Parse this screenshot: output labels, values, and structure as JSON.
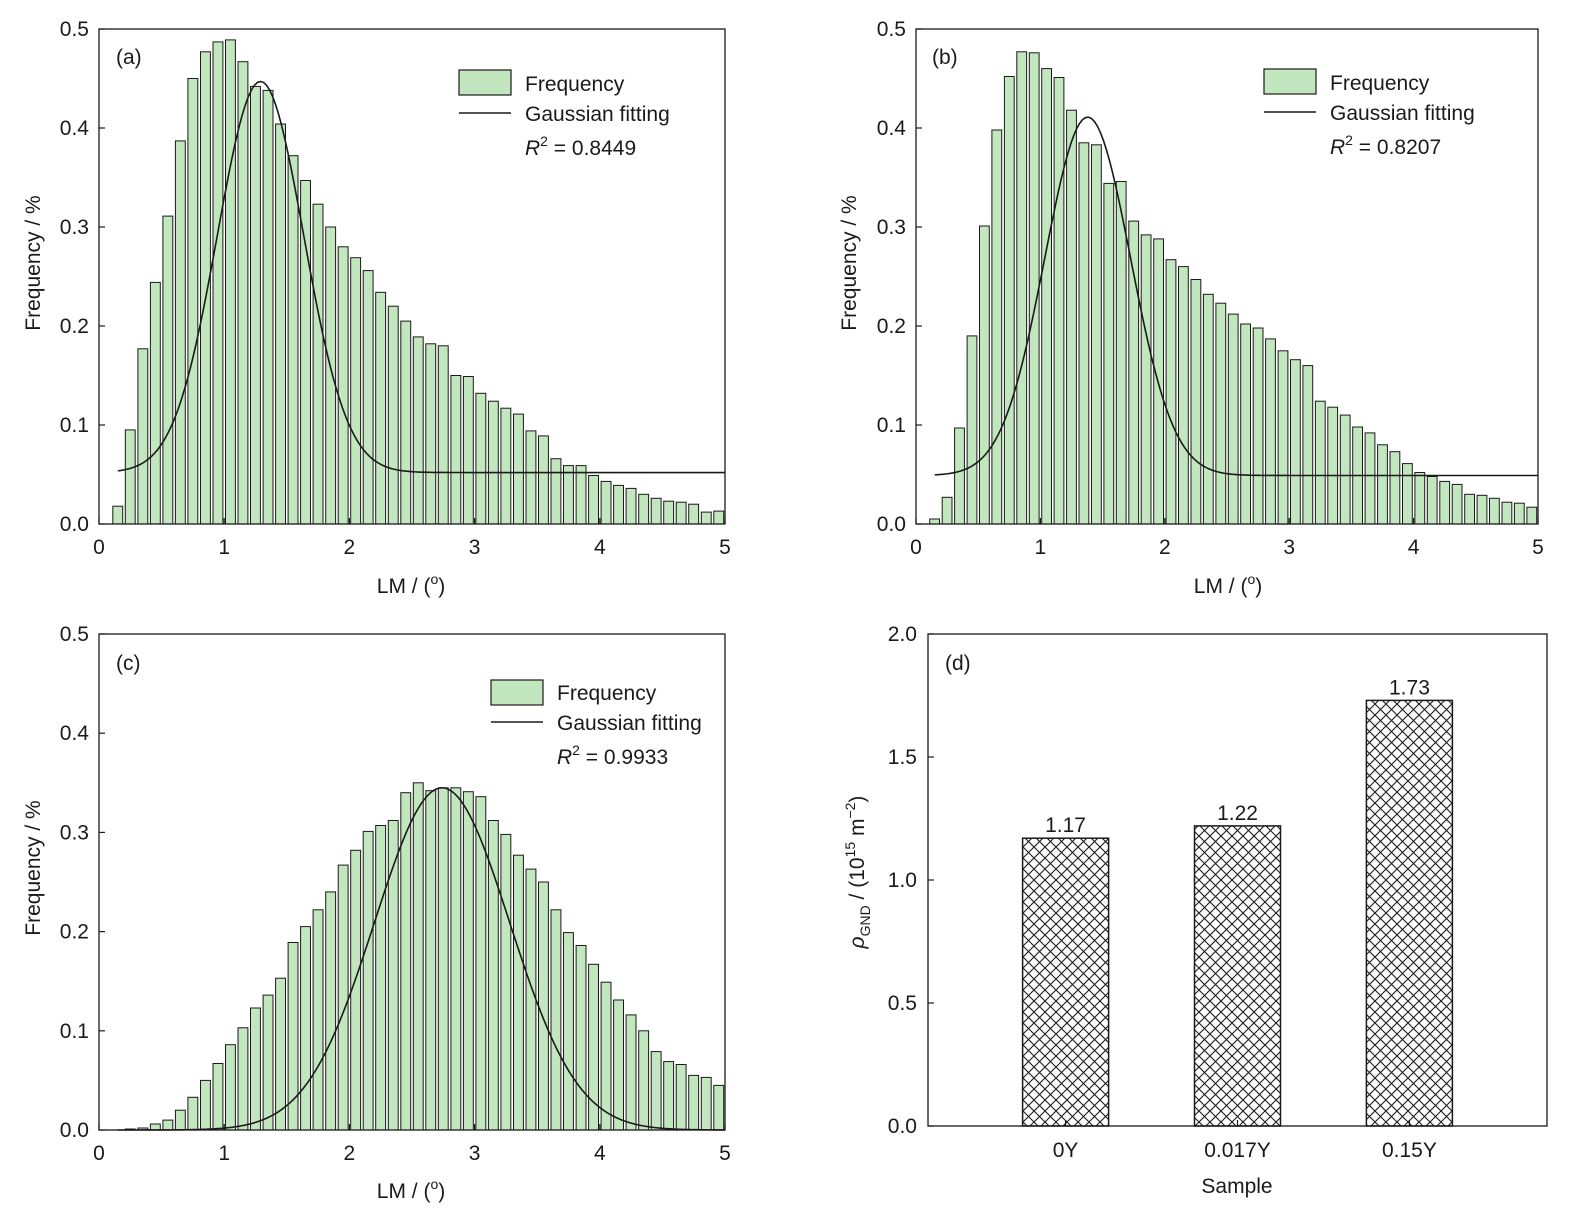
{
  "figure": {
    "panels": [
      {
        "tag": "(a)",
        "ylabel": "Frequency / %",
        "xlabel": "LM / (",
        "xlabel_deg": "o",
        "xlabel_close": ")",
        "legend": {
          "bar": "Frequency",
          "line": "Gaussian fitting",
          "r2_value": "0.8449"
        }
      },
      {
        "tag": "(b)",
        "ylabel": "Frequency / %",
        "xlabel": "LM / (",
        "xlabel_deg": "o",
        "xlabel_close": ")",
        "legend": {
          "bar": "Frequency",
          "line": "Gaussian fitting",
          "r2_value": "0.8207"
        }
      },
      {
        "tag": "(c)",
        "ylabel": "Frequency / %",
        "xlabel": "LM / (",
        "xlabel_deg": "o",
        "xlabel_close": ")",
        "legend": {
          "bar": "Frequency",
          "line": "Gaussian fitting",
          "r2_value": "0.9933"
        }
      },
      {
        "tag": "(d)",
        "xlabel": "Sample",
        "ylabel_rho": "ρ",
        "ylabel_sub": "GND",
        "ylabel_unit": " / (10",
        "ylabel_exp": "15",
        "ylabel_m": " m",
        "ylabel_mexp": "−2",
        "ylabel_close": ")"
      }
    ],
    "r2_symbol": "R",
    "r2_exp": "2",
    "colors": {
      "bar_fill": "#c2e6bd",
      "bar_stroke": "#1a1a1a",
      "line": "#1a1a1a"
    }
  },
  "chart_data": [
    {
      "type": "bar",
      "subtype": "histogram_with_fit",
      "title": "(a)",
      "xlabel": "LM / (o)",
      "ylabel": "Frequency / %",
      "xlim": [
        0,
        5
      ],
      "ylim": [
        0,
        0.5
      ],
      "xticks": [
        0,
        1,
        2,
        3,
        4,
        5
      ],
      "yticks": [
        0.0,
        0.1,
        0.2,
        0.3,
        0.4,
        0.5
      ],
      "bin_width": 0.1,
      "x": [
        0.15,
        0.25,
        0.35,
        0.45,
        0.55,
        0.65,
        0.75,
        0.85,
        0.95,
        1.05,
        1.15,
        1.25,
        1.35,
        1.45,
        1.55,
        1.65,
        1.75,
        1.85,
        1.95,
        2.05,
        2.15,
        2.25,
        2.35,
        2.45,
        2.55,
        2.65,
        2.75,
        2.85,
        2.95,
        3.05,
        3.15,
        3.25,
        3.35,
        3.45,
        3.55,
        3.65,
        3.75,
        3.85,
        3.95,
        4.05,
        4.15,
        4.25,
        4.35,
        4.45,
        4.55,
        4.65,
        4.75,
        4.85,
        4.95
      ],
      "series": [
        {
          "name": "Frequency",
          "values": [
            0.018,
            0.095,
            0.177,
            0.244,
            0.311,
            0.387,
            0.45,
            0.477,
            0.487,
            0.489,
            0.467,
            0.442,
            0.438,
            0.404,
            0.372,
            0.347,
            0.323,
            0.3,
            0.28,
            0.269,
            0.256,
            0.234,
            0.22,
            0.205,
            0.189,
            0.182,
            0.18,
            0.15,
            0.149,
            0.132,
            0.124,
            0.117,
            0.111,
            0.094,
            0.089,
            0.066,
            0.059,
            0.059,
            0.049,
            0.043,
            0.039,
            0.036,
            0.03,
            0.026,
            0.023,
            0.022,
            0.02,
            0.012,
            0.013
          ]
        },
        {
          "name": "Gaussian fitting",
          "fit": {
            "y0": 0.052,
            "xc": 1.29,
            "w": 0.69,
            "A": 0.395,
            "x_start": 0.15,
            "x_end": 5.0
          }
        }
      ],
      "annotation": "R2 = 0.8449"
    },
    {
      "type": "bar",
      "subtype": "histogram_with_fit",
      "title": "(b)",
      "xlabel": "LM / (o)",
      "ylabel": "Frequency / %",
      "xlim": [
        0,
        5
      ],
      "ylim": [
        0,
        0.5
      ],
      "xticks": [
        0,
        1,
        2,
        3,
        4,
        5
      ],
      "yticks": [
        0.0,
        0.1,
        0.2,
        0.3,
        0.4,
        0.5
      ],
      "bin_width": 0.1,
      "x": [
        0.15,
        0.25,
        0.35,
        0.45,
        0.55,
        0.65,
        0.75,
        0.85,
        0.95,
        1.05,
        1.15,
        1.25,
        1.35,
        1.45,
        1.55,
        1.65,
        1.75,
        1.85,
        1.95,
        2.05,
        2.15,
        2.25,
        2.35,
        2.45,
        2.55,
        2.65,
        2.75,
        2.85,
        2.95,
        3.05,
        3.15,
        3.25,
        3.35,
        3.45,
        3.55,
        3.65,
        3.75,
        3.85,
        3.95,
        4.05,
        4.15,
        4.25,
        4.35,
        4.45,
        4.55,
        4.65,
        4.75,
        4.85,
        4.95
      ],
      "series": [
        {
          "name": "Frequency",
          "values": [
            0.005,
            0.027,
            0.097,
            0.19,
            0.301,
            0.398,
            0.452,
            0.477,
            0.476,
            0.46,
            0.451,
            0.418,
            0.385,
            0.383,
            0.344,
            0.346,
            0.306,
            0.292,
            0.288,
            0.267,
            0.26,
            0.247,
            0.232,
            0.223,
            0.212,
            0.202,
            0.198,
            0.187,
            0.175,
            0.166,
            0.16,
            0.124,
            0.118,
            0.11,
            0.098,
            0.092,
            0.08,
            0.073,
            0.061,
            0.052,
            0.048,
            0.043,
            0.04,
            0.03,
            0.029,
            0.026,
            0.022,
            0.021,
            0.017
          ]
        },
        {
          "name": "Gaussian fitting",
          "fit": {
            "y0": 0.049,
            "xc": 1.38,
            "w": 0.69,
            "A": 0.362,
            "x_start": 0.15,
            "x_end": 5.0
          }
        }
      ],
      "annotation": "R2 = 0.8207"
    },
    {
      "type": "bar",
      "subtype": "histogram_with_fit",
      "title": "(c)",
      "xlabel": "LM / (o)",
      "ylabel": "Frequency / %",
      "xlim": [
        0,
        5
      ],
      "ylim": [
        0,
        0.5
      ],
      "xticks": [
        0,
        1,
        2,
        3,
        4,
        5
      ],
      "yticks": [
        0.0,
        0.1,
        0.2,
        0.3,
        0.4,
        0.5
      ],
      "bin_width": 0.1,
      "x": [
        0.15,
        0.25,
        0.35,
        0.45,
        0.55,
        0.65,
        0.75,
        0.85,
        0.95,
        1.05,
        1.15,
        1.25,
        1.35,
        1.45,
        1.55,
        1.65,
        1.75,
        1.85,
        1.95,
        2.05,
        2.15,
        2.25,
        2.35,
        2.45,
        2.55,
        2.65,
        2.75,
        2.85,
        2.95,
        3.05,
        3.15,
        3.25,
        3.35,
        3.45,
        3.55,
        3.65,
        3.75,
        3.85,
        3.95,
        4.05,
        4.15,
        4.25,
        4.35,
        4.45,
        4.55,
        4.65,
        4.75,
        4.85,
        4.95
      ],
      "series": [
        {
          "name": "Frequency",
          "values": [
            0.0,
            0.001,
            0.002,
            0.006,
            0.01,
            0.02,
            0.033,
            0.05,
            0.067,
            0.086,
            0.103,
            0.123,
            0.136,
            0.153,
            0.189,
            0.205,
            0.222,
            0.24,
            0.267,
            0.282,
            0.301,
            0.307,
            0.312,
            0.34,
            0.35,
            0.342,
            0.345,
            0.345,
            0.341,
            0.336,
            0.312,
            0.298,
            0.277,
            0.263,
            0.25,
            0.222,
            0.199,
            0.186,
            0.167,
            0.149,
            0.131,
            0.116,
            0.1,
            0.079,
            0.069,
            0.066,
            0.055,
            0.053,
            0.045
          ]
        },
        {
          "name": "Gaussian fitting",
          "fit": {
            "y0": 0.0,
            "xc": 2.74,
            "w": 1.08,
            "A": 0.345,
            "x_start": 0.15,
            "x_end": 5.0
          }
        }
      ],
      "annotation": "R2 = 0.9933"
    },
    {
      "type": "bar",
      "title": "(d)",
      "xlabel": "Sample",
      "ylabel": "ρGND / (10^15 m^-2)",
      "ylim": [
        0,
        2.0
      ],
      "yticks": [
        0.0,
        0.5,
        1.0,
        1.5,
        2.0
      ],
      "categories": [
        "0Y",
        "0.017Y",
        "0.15Y"
      ],
      "values": [
        1.17,
        1.22,
        1.73
      ],
      "value_labels": [
        "1.17",
        "1.22",
        "1.73"
      ],
      "pattern": "crosshatch"
    }
  ]
}
